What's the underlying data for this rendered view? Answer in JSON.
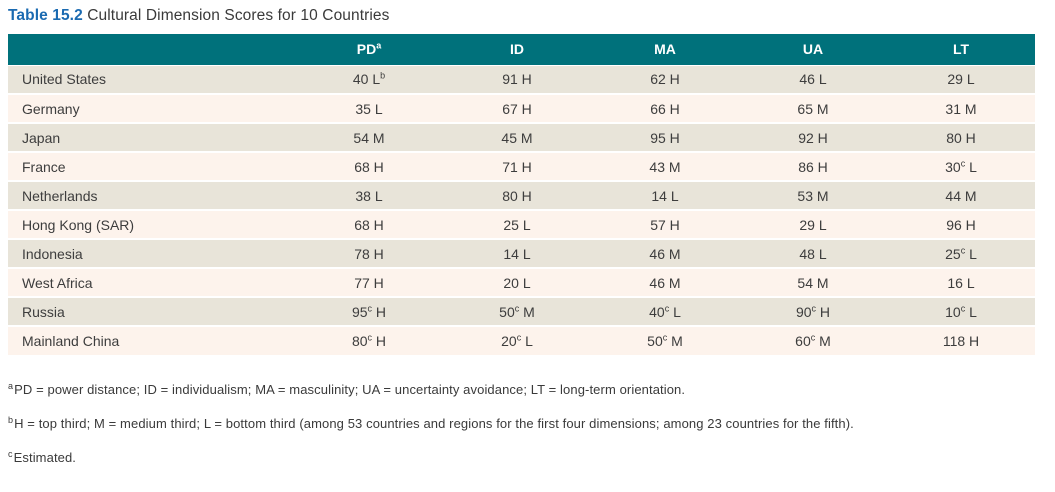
{
  "title": {
    "label": "Table 15.2",
    "text": "Cultural Dimension Scores for 10 Countries"
  },
  "colors": {
    "header_bg": "#00717b",
    "row_odd_bg": "#e8e4d9",
    "row_even_bg": "#fdf3ec",
    "title_accent": "#1a6ab1",
    "text": "#3d3d3d"
  },
  "table": {
    "columns": [
      {
        "label": "PD",
        "sup": "a"
      },
      {
        "label": "ID",
        "sup": ""
      },
      {
        "label": "MA",
        "sup": ""
      },
      {
        "label": "UA",
        "sup": ""
      },
      {
        "label": "LT",
        "sup": ""
      }
    ],
    "rows": [
      {
        "country": "United States",
        "cells": [
          {
            "value": "40",
            "value_sup": "",
            "grade": "L",
            "grade_sup": "b"
          },
          {
            "value": "91",
            "value_sup": "",
            "grade": "H",
            "grade_sup": ""
          },
          {
            "value": "62",
            "value_sup": "",
            "grade": "H",
            "grade_sup": ""
          },
          {
            "value": "46",
            "value_sup": "",
            "grade": "L",
            "grade_sup": ""
          },
          {
            "value": "29",
            "value_sup": "",
            "grade": "L",
            "grade_sup": ""
          }
        ]
      },
      {
        "country": "Germany",
        "cells": [
          {
            "value": "35",
            "value_sup": "",
            "grade": "L",
            "grade_sup": ""
          },
          {
            "value": "67",
            "value_sup": "",
            "grade": "H",
            "grade_sup": ""
          },
          {
            "value": "66",
            "value_sup": "",
            "grade": "H",
            "grade_sup": ""
          },
          {
            "value": "65",
            "value_sup": "",
            "grade": "M",
            "grade_sup": ""
          },
          {
            "value": "31",
            "value_sup": "",
            "grade": "M",
            "grade_sup": ""
          }
        ]
      },
      {
        "country": "Japan",
        "cells": [
          {
            "value": "54",
            "value_sup": "",
            "grade": "M",
            "grade_sup": ""
          },
          {
            "value": "45",
            "value_sup": "",
            "grade": "M",
            "grade_sup": ""
          },
          {
            "value": "95",
            "value_sup": "",
            "grade": "H",
            "grade_sup": ""
          },
          {
            "value": "92",
            "value_sup": "",
            "grade": "H",
            "grade_sup": ""
          },
          {
            "value": "80",
            "value_sup": "",
            "grade": "H",
            "grade_sup": ""
          }
        ]
      },
      {
        "country": "France",
        "cells": [
          {
            "value": "68",
            "value_sup": "",
            "grade": "H",
            "grade_sup": ""
          },
          {
            "value": "71",
            "value_sup": "",
            "grade": "H",
            "grade_sup": ""
          },
          {
            "value": "43",
            "value_sup": "",
            "grade": "M",
            "grade_sup": ""
          },
          {
            "value": "86",
            "value_sup": "",
            "grade": "H",
            "grade_sup": ""
          },
          {
            "value": "30",
            "value_sup": "c",
            "grade": "L",
            "grade_sup": ""
          }
        ]
      },
      {
        "country": "Netherlands",
        "cells": [
          {
            "value": "38",
            "value_sup": "",
            "grade": "L",
            "grade_sup": ""
          },
          {
            "value": "80",
            "value_sup": "",
            "grade": "H",
            "grade_sup": ""
          },
          {
            "value": "14",
            "value_sup": "",
            "grade": "L",
            "grade_sup": ""
          },
          {
            "value": "53",
            "value_sup": "",
            "grade": "M",
            "grade_sup": ""
          },
          {
            "value": "44",
            "value_sup": "",
            "grade": "M",
            "grade_sup": ""
          }
        ]
      },
      {
        "country": "Hong Kong (SAR)",
        "cells": [
          {
            "value": "68",
            "value_sup": "",
            "grade": "H",
            "grade_sup": ""
          },
          {
            "value": "25",
            "value_sup": "",
            "grade": "L",
            "grade_sup": ""
          },
          {
            "value": "57",
            "value_sup": "",
            "grade": "H",
            "grade_sup": ""
          },
          {
            "value": "29",
            "value_sup": "",
            "grade": "L",
            "grade_sup": ""
          },
          {
            "value": "96",
            "value_sup": "",
            "grade": "H",
            "grade_sup": ""
          }
        ]
      },
      {
        "country": "Indonesia",
        "cells": [
          {
            "value": "78",
            "value_sup": "",
            "grade": "H",
            "grade_sup": ""
          },
          {
            "value": "14",
            "value_sup": "",
            "grade": "L",
            "grade_sup": ""
          },
          {
            "value": "46",
            "value_sup": "",
            "grade": "M",
            "grade_sup": ""
          },
          {
            "value": "48",
            "value_sup": "",
            "grade": "L",
            "grade_sup": ""
          },
          {
            "value": "25",
            "value_sup": "c",
            "grade": "L",
            "grade_sup": ""
          }
        ]
      },
      {
        "country": "West Africa",
        "cells": [
          {
            "value": "77",
            "value_sup": "",
            "grade": "H",
            "grade_sup": ""
          },
          {
            "value": "20",
            "value_sup": "",
            "grade": "L",
            "grade_sup": ""
          },
          {
            "value": "46",
            "value_sup": "",
            "grade": "M",
            "grade_sup": ""
          },
          {
            "value": "54",
            "value_sup": "",
            "grade": "M",
            "grade_sup": ""
          },
          {
            "value": "16",
            "value_sup": "",
            "grade": "L",
            "grade_sup": ""
          }
        ]
      },
      {
        "country": "Russia",
        "cells": [
          {
            "value": "95",
            "value_sup": "c",
            "grade": "H",
            "grade_sup": ""
          },
          {
            "value": "50",
            "value_sup": "c",
            "grade": "M",
            "grade_sup": ""
          },
          {
            "value": "40",
            "value_sup": "c",
            "grade": "L",
            "grade_sup": ""
          },
          {
            "value": "90",
            "value_sup": "c",
            "grade": "H",
            "grade_sup": ""
          },
          {
            "value": "10",
            "value_sup": "c",
            "grade": "L",
            "grade_sup": ""
          }
        ]
      },
      {
        "country": "Mainland China",
        "cells": [
          {
            "value": "80",
            "value_sup": "c",
            "grade": "H",
            "grade_sup": ""
          },
          {
            "value": "20",
            "value_sup": "c",
            "grade": "L",
            "grade_sup": ""
          },
          {
            "value": "50",
            "value_sup": "c",
            "grade": "M",
            "grade_sup": ""
          },
          {
            "value": "60",
            "value_sup": "c",
            "grade": "M",
            "grade_sup": ""
          },
          {
            "value": "118",
            "value_sup": "",
            "grade": "H",
            "grade_sup": ""
          }
        ]
      }
    ]
  },
  "footnotes": [
    {
      "marker": "a",
      "text": "PD = power distance; ID = individualism; MA = masculinity; UA = uncertainty avoidance; LT = long-term orientation."
    },
    {
      "marker": "b",
      "text": "H = top third; M = medium third; L = bottom third (among 53 countries and regions for the first four dimensions; among 23 countries for the fifth)."
    },
    {
      "marker": "c",
      "text": "Estimated."
    }
  ]
}
